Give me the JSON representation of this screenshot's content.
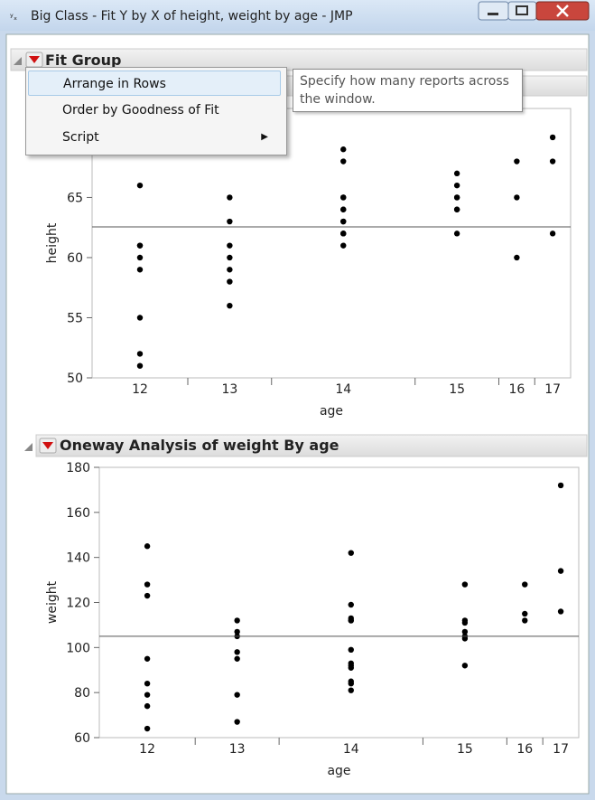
{
  "window": {
    "title": "Big Class - Fit Y by X of height, weight by age - JMP"
  },
  "group": {
    "title": "Fit Group"
  },
  "menu": {
    "items": [
      "Arrange in Rows",
      "Order by Goodness of Fit",
      "Script"
    ]
  },
  "tooltip": "Specify how many reports across the window.",
  "chart_data": [
    {
      "type": "scatter",
      "x_label": "age",
      "y_label": "height",
      "color": "#000000",
      "categories": [
        "12",
        "13",
        "14",
        "15",
        "16",
        "17"
      ],
      "values": [
        [
          59,
          61,
          55,
          66,
          52,
          60,
          61,
          51
        ],
        [
          65,
          63,
          61,
          60,
          59,
          58,
          56
        ],
        [
          61,
          62,
          62,
          63,
          63,
          64,
          64,
          65,
          65,
          68,
          69,
          62
        ],
        [
          62,
          64,
          65,
          66,
          67,
          64,
          65
        ],
        [
          68,
          65,
          60
        ],
        [
          70,
          68,
          62
        ]
      ],
      "mean": 62.55,
      "ylim": [
        50,
        72.4
      ],
      "yticks": [
        50,
        55,
        60,
        65
      ]
    },
    {
      "type": "scatter",
      "title": "Oneway Analysis of weight By age",
      "x_label": "age",
      "y_label": "weight",
      "color": "#000000",
      "categories": [
        "12",
        "13",
        "14",
        "15",
        "16",
        "17"
      ],
      "values": [
        [
          145,
          128,
          123,
          95,
          84,
          79,
          74,
          64
        ],
        [
          112,
          107,
          105,
          98,
          95,
          79,
          67
        ],
        [
          142,
          119,
          113,
          112,
          112,
          99,
          93,
          92,
          91,
          85,
          84,
          81
        ],
        [
          128,
          112,
          111,
          107,
          105,
          104,
          92
        ],
        [
          128,
          115,
          112
        ],
        [
          172,
          134,
          116
        ]
      ],
      "mean": 105,
      "ylim": [
        60,
        180
      ],
      "yticks": [
        60,
        80,
        100,
        120,
        140,
        160,
        180
      ]
    }
  ]
}
